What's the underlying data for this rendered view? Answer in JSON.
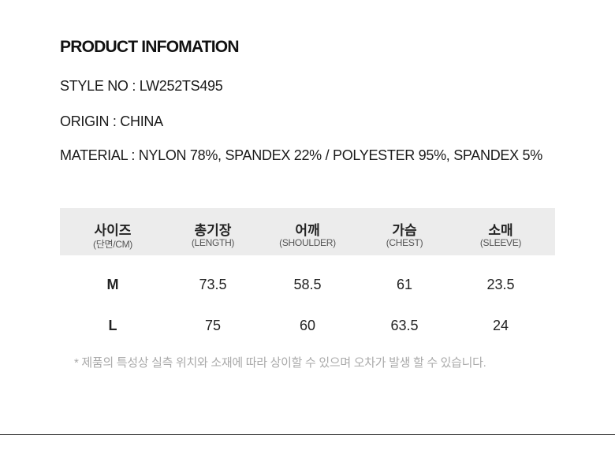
{
  "title": "PRODUCT INFOMATION",
  "info": {
    "style_no": "STYLE NO : LW252TS495",
    "origin": "ORIGIN : CHINA",
    "material": "MATERIAL : NYLON 78%, SPANDEX 22% / POLYESTER 95%, SPANDEX 5%"
  },
  "size_table": {
    "headers": [
      {
        "kr": "사이즈",
        "en": "(단면/CM)"
      },
      {
        "kr": "총기장",
        "en": "(LENGTH)"
      },
      {
        "kr": "어깨",
        "en": "(SHOULDER)"
      },
      {
        "kr": "가슴",
        "en": "(CHEST)"
      },
      {
        "kr": "소매",
        "en": "(SLEEVE)"
      }
    ],
    "rows": [
      [
        "M",
        "73.5",
        "58.5",
        "61",
        "23.5"
      ],
      [
        "L",
        "75",
        "60",
        "63.5",
        "24"
      ]
    ],
    "header_bg": "#ececec"
  },
  "note": "* 제품의 특성상 실측 위치와 소재에 따라 상이할 수 있으며 오차가 발생 할 수 있습니다."
}
